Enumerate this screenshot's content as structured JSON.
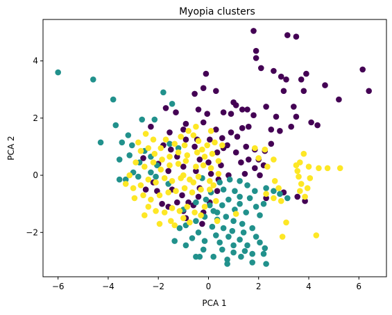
{
  "chart_data": {
    "type": "scatter",
    "title": "Myopia clusters",
    "xlabel": "PCA 1",
    "ylabel": "PCA 2",
    "xlim": [
      -6.6,
      7.1
    ],
    "ylim": [
      -3.55,
      5.45
    ],
    "xticks": [
      -6,
      -4,
      -2,
      0,
      2,
      4,
      6
    ],
    "yticks": [
      -2,
      0,
      2,
      4
    ],
    "xtick_labels": [
      "−6",
      "−4",
      "−2",
      "0",
      "2",
      "4",
      "6"
    ],
    "ytick_labels": [
      "−2",
      "0",
      "2",
      "4"
    ],
    "grid": false,
    "legend": "none",
    "series": [
      {
        "color": "#440154",
        "points": [
          [
            1.8,
            5.05
          ],
          [
            3.15,
            4.9
          ],
          [
            3.5,
            4.85
          ],
          [
            1.9,
            4.35
          ],
          [
            1.9,
            4.1
          ],
          [
            2.1,
            3.75
          ],
          [
            6.15,
            3.7
          ],
          [
            -0.1,
            3.55
          ],
          [
            2.6,
            3.65
          ],
          [
            2.9,
            3.45
          ],
          [
            3.1,
            3.35
          ],
          [
            3.7,
            3.35
          ],
          [
            3.9,
            3.55
          ],
          [
            4.65,
            3.15
          ],
          [
            6.4,
            2.95
          ],
          [
            3.0,
            2.95
          ],
          [
            3.8,
            2.95
          ],
          [
            5.2,
            2.65
          ],
          [
            0.3,
            2.95
          ],
          [
            -0.55,
            2.85
          ],
          [
            -0.2,
            3.05
          ],
          [
            1.0,
            2.55
          ],
          [
            1.1,
            2.45
          ],
          [
            0.6,
            2.2
          ],
          [
            1.35,
            2.3
          ],
          [
            1.55,
            2.3
          ],
          [
            2.3,
            2.4
          ],
          [
            2.7,
            2.05
          ],
          [
            3.4,
            2.4
          ],
          [
            3.5,
            2.05
          ],
          [
            -1.3,
            2.2
          ],
          [
            -1.7,
            2.35
          ],
          [
            -0.4,
            2.3
          ],
          [
            -0.05,
            2.15
          ],
          [
            0.9,
            2.15
          ],
          [
            1.8,
            2.1
          ],
          [
            2.5,
            1.6
          ],
          [
            3.3,
            1.7
          ],
          [
            4.1,
            1.85
          ],
          [
            4.35,
            1.75
          ],
          [
            2.85,
            1.55
          ],
          [
            2.5,
            1.1
          ],
          [
            -0.9,
            1.8
          ],
          [
            -0.2,
            1.85
          ],
          [
            0.3,
            1.6
          ],
          [
            0.9,
            1.5
          ],
          [
            1.6,
            1.7
          ],
          [
            1.35,
            1.65
          ],
          [
            -1.0,
            1.6
          ],
          [
            -1.55,
            1.5
          ],
          [
            -0.9,
            1.25
          ],
          [
            -0.45,
            1.25
          ],
          [
            0.05,
            1.25
          ],
          [
            0.55,
            1.3
          ],
          [
            1.15,
            1.35
          ],
          [
            -2.3,
            1.7
          ],
          [
            -1.8,
            1.05
          ],
          [
            0.75,
            1.05
          ],
          [
            1.5,
            1.0
          ],
          [
            1.85,
            0.9
          ],
          [
            2.25,
            0.85
          ],
          [
            -0.55,
            1.0
          ],
          [
            0.35,
            0.8
          ],
          [
            0.6,
            0.95
          ],
          [
            1.1,
            0.8
          ],
          [
            2.0,
            0.55
          ],
          [
            -1.5,
            0.9
          ],
          [
            -1.25,
            0.65
          ],
          [
            -0.35,
            0.55
          ],
          [
            0.0,
            0.45
          ],
          [
            0.5,
            0.35
          ],
          [
            1.3,
            0.45
          ],
          [
            1.6,
            0.55
          ],
          [
            2.2,
            0.35
          ],
          [
            -2.6,
            0.6
          ],
          [
            -2.0,
            0.4
          ],
          [
            -1.0,
            0.3
          ],
          [
            0.1,
            0.05
          ],
          [
            0.8,
            0.0
          ],
          [
            1.45,
            0.05
          ],
          [
            1.85,
            0.25
          ],
          [
            2.05,
            0.0
          ],
          [
            -1.6,
            0.15
          ],
          [
            -0.5,
            0.15
          ],
          [
            0.4,
            -0.15
          ],
          [
            -2.2,
            -0.25
          ],
          [
            -1.45,
            -0.5
          ],
          [
            -0.35,
            -0.45
          ],
          [
            0.35,
            -0.55
          ],
          [
            -1.05,
            -0.7
          ],
          [
            -2.05,
            -0.55
          ],
          [
            -1.25,
            -0.95
          ],
          [
            -0.8,
            -0.95
          ],
          [
            0.05,
            -0.95
          ],
          [
            -1.85,
            -1.0
          ],
          [
            -1.6,
            -1.1
          ],
          [
            -2.5,
            -0.5
          ],
          [
            -1.0,
            -1.25
          ],
          [
            -0.2,
            -1.3
          ],
          [
            -0.6,
            -1.05
          ],
          [
            3.0,
            -0.6
          ],
          [
            3.55,
            -0.75
          ],
          [
            3.85,
            -0.9
          ],
          [
            2.3,
            -0.8
          ],
          [
            -0.25,
            -1.7
          ],
          [
            -0.9,
            -1.5
          ],
          [
            -0.4,
            -0.75
          ]
        ]
      },
      {
        "color": "#21918c",
        "points": [
          [
            -6.0,
            3.6
          ],
          [
            -4.6,
            3.35
          ],
          [
            -3.8,
            2.65
          ],
          [
            -1.8,
            2.9
          ],
          [
            -1.45,
            2.5
          ],
          [
            -2.65,
            1.95
          ],
          [
            -2.15,
            1.95
          ],
          [
            -3.7,
            1.75
          ],
          [
            -3.2,
            1.4
          ],
          [
            -4.3,
            1.15
          ],
          [
            -3.05,
            1.05
          ],
          [
            -3.45,
            1.15
          ],
          [
            -1.55,
            1.1
          ],
          [
            -1.2,
            0.95
          ],
          [
            -2.55,
            0.85
          ],
          [
            -2.3,
            0.65
          ],
          [
            -3.15,
            0.7
          ],
          [
            -3.55,
            0.55
          ],
          [
            -2.75,
            0.45
          ],
          [
            -2.05,
            0.35
          ],
          [
            -3.0,
            0.1
          ],
          [
            -2.3,
            0.1
          ],
          [
            -2.8,
            -0.05
          ],
          [
            -3.3,
            -0.15
          ],
          [
            -3.55,
            -0.15
          ],
          [
            -2.1,
            -0.05
          ],
          [
            -1.6,
            -0.3
          ],
          [
            -0.25,
            -0.1
          ],
          [
            0.45,
            -0.25
          ],
          [
            0.85,
            -0.15
          ],
          [
            1.25,
            -0.2
          ],
          [
            0.6,
            -0.5
          ],
          [
            1.05,
            -0.55
          ],
          [
            1.55,
            -0.35
          ],
          [
            1.85,
            -0.55
          ],
          [
            2.3,
            -0.45
          ],
          [
            0.1,
            -0.6
          ],
          [
            -0.1,
            -0.85
          ],
          [
            0.8,
            -0.85
          ],
          [
            1.25,
            -0.75
          ],
          [
            1.65,
            -0.8
          ],
          [
            2.6,
            -0.55
          ],
          [
            2.85,
            -0.65
          ],
          [
            3.15,
            -0.8
          ],
          [
            2.2,
            -1.0
          ],
          [
            1.9,
            -1.1
          ],
          [
            1.25,
            -1.0
          ],
          [
            0.55,
            -1.05
          ],
          [
            -0.5,
            -0.95
          ],
          [
            0.2,
            -1.25
          ],
          [
            1.05,
            -1.2
          ],
          [
            1.5,
            -1.3
          ],
          [
            2.05,
            -1.4
          ],
          [
            -0.15,
            -1.45
          ],
          [
            0.35,
            -1.55
          ],
          [
            0.7,
            -1.45
          ],
          [
            1.0,
            -1.6
          ],
          [
            1.35,
            -1.7
          ],
          [
            -0.5,
            -1.6
          ],
          [
            -0.9,
            -1.75
          ],
          [
            0.15,
            -1.8
          ],
          [
            0.6,
            -1.85
          ],
          [
            0.95,
            -1.95
          ],
          [
            1.4,
            -2.0
          ],
          [
            1.75,
            -1.85
          ],
          [
            -1.15,
            -1.85
          ],
          [
            -0.4,
            -2.0
          ],
          [
            0.3,
            -2.1
          ],
          [
            0.8,
            -2.15
          ],
          [
            1.25,
            -2.25
          ],
          [
            1.9,
            -2.15
          ],
          [
            -0.65,
            -2.2
          ],
          [
            -0.15,
            -2.3
          ],
          [
            0.45,
            -2.35
          ],
          [
            1.0,
            -2.45
          ],
          [
            1.55,
            -2.45
          ],
          [
            2.05,
            -2.35
          ],
          [
            -0.9,
            -2.45
          ],
          [
            -1.35,
            -2.3
          ],
          [
            -0.2,
            -2.6
          ],
          [
            0.55,
            -2.6
          ],
          [
            1.0,
            -2.7
          ],
          [
            1.45,
            -2.65
          ],
          [
            1.75,
            -2.75
          ],
          [
            2.25,
            -2.55
          ],
          [
            -0.5,
            -2.85
          ],
          [
            -0.35,
            -2.85
          ],
          [
            0.2,
            -2.85
          ],
          [
            0.75,
            -2.95
          ],
          [
            1.3,
            -2.85
          ],
          [
            2.2,
            -2.75
          ],
          [
            0.75,
            -3.1
          ],
          [
            1.75,
            -3.05
          ],
          [
            2.3,
            -3.1
          ],
          [
            0.35,
            -1.3
          ],
          [
            0.05,
            -1.05
          ],
          [
            -1.0,
            -1.2
          ]
        ]
      },
      {
        "color": "#fde725",
        "points": [
          [
            -2.5,
            1.45
          ],
          [
            -2.2,
            1.25
          ],
          [
            -1.9,
            0.95
          ],
          [
            -2.8,
            1.15
          ],
          [
            -2.7,
            0.85
          ],
          [
            -2.4,
            0.95
          ],
          [
            -1.7,
            1.25
          ],
          [
            -1.35,
            1.1
          ],
          [
            -0.95,
            1.05
          ],
          [
            -0.6,
            1.4
          ],
          [
            -0.4,
            1.2
          ],
          [
            -0.05,
            1.05
          ],
          [
            0.25,
            1.15
          ],
          [
            0.55,
            1.05
          ],
          [
            -2.15,
            0.75
          ],
          [
            -1.85,
            0.55
          ],
          [
            -1.55,
            0.65
          ],
          [
            -1.2,
            0.8
          ],
          [
            -0.85,
            0.7
          ],
          [
            -0.45,
            0.8
          ],
          [
            -0.15,
            0.65
          ],
          [
            0.15,
            0.75
          ],
          [
            0.4,
            0.5
          ],
          [
            1.85,
            0.95
          ],
          [
            2.25,
            0.9
          ],
          [
            2.0,
            0.6
          ],
          [
            2.6,
            0.55
          ],
          [
            2.35,
            0.3
          ],
          [
            3.8,
            0.75
          ],
          [
            3.65,
            0.45
          ],
          [
            3.5,
            0.35
          ],
          [
            3.55,
            0.15
          ],
          [
            4.0,
            0.3
          ],
          [
            4.4,
            0.25
          ],
          [
            4.75,
            0.25
          ],
          [
            5.25,
            0.25
          ],
          [
            3.6,
            -0.05
          ],
          [
            4.05,
            -0.1
          ],
          [
            3.7,
            -0.3
          ],
          [
            3.95,
            -0.45
          ],
          [
            3.65,
            -0.55
          ],
          [
            3.85,
            -0.75
          ],
          [
            4.3,
            -2.1
          ],
          [
            3.1,
            -1.65
          ],
          [
            2.95,
            -2.15
          ],
          [
            2.65,
            -0.2
          ],
          [
            2.8,
            -0.45
          ],
          [
            2.6,
            -0.8
          ],
          [
            2.3,
            -0.65
          ],
          [
            2.9,
            -0.9
          ],
          [
            -2.9,
            0.45
          ],
          [
            -2.55,
            0.3
          ],
          [
            -2.2,
            0.45
          ],
          [
            -1.9,
            0.2
          ],
          [
            -1.55,
            0.35
          ],
          [
            -1.2,
            0.4
          ],
          [
            -0.9,
            0.5
          ],
          [
            -0.5,
            0.3
          ],
          [
            -0.2,
            0.35
          ],
          [
            0.1,
            0.25
          ],
          [
            -3.3,
            -0.3
          ],
          [
            -3.0,
            -0.45
          ],
          [
            -2.7,
            -0.35
          ],
          [
            -2.4,
            -0.15
          ],
          [
            -2.1,
            -0.25
          ],
          [
            -1.75,
            -0.1
          ],
          [
            -1.45,
            -0.2
          ],
          [
            -1.1,
            -0.1
          ],
          [
            -0.75,
            -0.15
          ],
          [
            -0.4,
            -0.05
          ],
          [
            0.05,
            -0.2
          ],
          [
            0.4,
            0.05
          ],
          [
            -2.95,
            -0.8
          ],
          [
            -2.6,
            -0.7
          ],
          [
            -2.3,
            -0.85
          ],
          [
            -1.95,
            -0.7
          ],
          [
            -1.6,
            -0.6
          ],
          [
            -1.3,
            -0.55
          ],
          [
            -0.95,
            -0.45
          ],
          [
            -0.65,
            -0.6
          ],
          [
            -0.3,
            -0.5
          ],
          [
            0.05,
            -0.5
          ],
          [
            -2.4,
            -1.1
          ],
          [
            -2.1,
            -1.25
          ],
          [
            -1.75,
            -1.3
          ],
          [
            -1.45,
            -1.15
          ],
          [
            -1.15,
            -1.25
          ],
          [
            -0.85,
            -1.1
          ],
          [
            -0.55,
            -1.3
          ],
          [
            -0.15,
            -1.1
          ],
          [
            0.3,
            -0.9
          ],
          [
            -2.55,
            -1.4
          ],
          [
            -1.5,
            -1.6
          ],
          [
            -1.0,
            -1.5
          ],
          [
            -1.95,
            -1.7
          ],
          [
            -1.35,
            -1.75
          ],
          [
            -0.75,
            -1.65
          ],
          [
            -0.3,
            -1.4
          ],
          [
            0.35,
            -1.6
          ],
          [
            1.1,
            -1.35
          ],
          [
            -0.8,
            1.55
          ],
          [
            -0.5,
            1.7
          ],
          [
            0.1,
            1.55
          ],
          [
            -1.1,
            1.35
          ],
          [
            -0.25,
            0.9
          ],
          [
            -3.15,
            0.0
          ],
          [
            -1.0,
            0.0
          ],
          [
            -0.6,
            -0.25
          ],
          [
            0.2,
            -0.35
          ]
        ]
      }
    ]
  }
}
